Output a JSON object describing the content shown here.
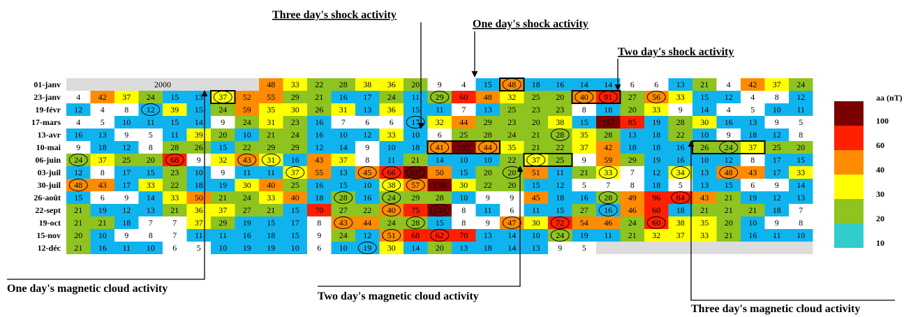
{
  "table": {
    "year": "2000",
    "rows": [
      {
        "date": "01-janv",
        "values": [
          48,
          33,
          22,
          28,
          38,
          36,
          20,
          9,
          4,
          15,
          48,
          18,
          16,
          14,
          14,
          6,
          6,
          13,
          21,
          4,
          42,
          37,
          24
        ]
      },
      {
        "date": "23-janv",
        "values": [
          4,
          42,
          37,
          24,
          15,
          13,
          37,
          52,
          55,
          29,
          21,
          16,
          17,
          24,
          11,
          29,
          60,
          48,
          32,
          25,
          20,
          40,
          91,
          27,
          56,
          33,
          15,
          12,
          4,
          8,
          12
        ]
      },
      {
        "date": "19-févr",
        "values": [
          12,
          4,
          8,
          12,
          39,
          15,
          24,
          59,
          35,
          30,
          26,
          31,
          13,
          36,
          15,
          11,
          7,
          13,
          25,
          23,
          23,
          8,
          18,
          20,
          33,
          9,
          14,
          4,
          5,
          10,
          11
        ]
      },
      {
        "date": "17-mars",
        "values": [
          4,
          5,
          10,
          11,
          15,
          14,
          9,
          24,
          31,
          23,
          16,
          7,
          6,
          6,
          17,
          32,
          44,
          29,
          23,
          20,
          38,
          15,
          117,
          85,
          19,
          28,
          30,
          16,
          13,
          9,
          5
        ]
      },
      {
        "date": "13-avr",
        "values": [
          16,
          13,
          9,
          5,
          11,
          39,
          20,
          10,
          21,
          24,
          16,
          10,
          12,
          33,
          10,
          6,
          25,
          28,
          24,
          21,
          28,
          35,
          28,
          13,
          18,
          22,
          10,
          9,
          18,
          12,
          8
        ]
      },
      {
        "date": "10-mai",
        "values": [
          9,
          18,
          12,
          8,
          28,
          26,
          15,
          22,
          29,
          29,
          12,
          14,
          9,
          10,
          18,
          41,
          103,
          44,
          35,
          21,
          22,
          37,
          42,
          18,
          18,
          16,
          26,
          24,
          37,
          25,
          20
        ]
      },
      {
        "date": "06-juin",
        "values": [
          24,
          37,
          25,
          20,
          68,
          9,
          32,
          43,
          31,
          16,
          43,
          37,
          8,
          11,
          21,
          14,
          10,
          10,
          22,
          37,
          25,
          9,
          59,
          29,
          19,
          16,
          10,
          12,
          8,
          17,
          15
        ]
      },
      {
        "date": "03-juil",
        "values": [
          12,
          8,
          17,
          15,
          23,
          10,
          9,
          11,
          11,
          37,
          55,
          13,
          45,
          66,
          207,
          50,
          15,
          20,
          20,
          51,
          11,
          21,
          33,
          7,
          12,
          34,
          13,
          48,
          43,
          17,
          33
        ]
      },
      {
        "date": "30-juil",
        "values": [
          48,
          43,
          17,
          33,
          22,
          18,
          19,
          30,
          40,
          25,
          16,
          15,
          10,
          38,
          57,
          138,
          30,
          22,
          20,
          15,
          12,
          5,
          7,
          8,
          18,
          5,
          13,
          15,
          6,
          9,
          14
        ]
      },
      {
        "date": "26-août",
        "values": [
          15,
          6,
          9,
          14,
          33,
          50,
          21,
          24,
          33,
          40,
          18,
          28,
          16,
          24,
          29,
          28,
          10,
          9,
          9,
          45,
          18,
          16,
          28,
          49,
          96,
          84,
          43,
          21,
          19,
          12,
          13
        ]
      },
      {
        "date": "22-sept",
        "values": [
          21,
          19,
          12,
          13,
          21,
          36,
          37,
          27,
          21,
          15,
          70,
          27,
          22,
          40,
          75,
          133,
          8,
          11,
          6,
          11,
          15,
          27,
          16,
          46,
          60,
          18,
          21,
          21,
          21,
          18,
          7
        ]
      },
      {
        "date": "19-oct",
        "values": [
          21,
          21,
          18,
          7,
          7,
          37,
          29,
          19,
          15,
          17,
          8,
          43,
          44,
          24,
          28,
          15,
          8,
          9,
          47,
          30,
          72,
          54,
          46,
          24,
          60,
          38,
          35,
          20,
          10,
          9,
          8
        ]
      },
      {
        "date": "15-nov",
        "values": [
          20,
          10,
          9,
          8,
          7,
          11,
          11,
          16,
          18,
          15,
          9,
          24,
          12,
          51,
          68,
          62,
          70,
          13,
          14,
          10,
          24,
          19,
          11,
          21,
          32,
          37,
          33,
          21,
          16,
          11,
          10
        ]
      },
      {
        "date": "12-déc",
        "values": [
          21,
          16,
          11,
          10,
          6,
          5,
          10,
          19,
          19,
          10,
          6,
          10,
          19,
          30,
          14,
          20,
          13,
          18,
          14,
          13,
          9,
          5
        ]
      }
    ]
  },
  "legend": {
    "title": "aa (nT)",
    "levels": [
      {
        "label": 100,
        "color": "#7b0000",
        "cell_color": "#7b0000"
      },
      {
        "label": 60,
        "color": "#ff2000",
        "cell_color": "#ff2000"
      },
      {
        "label": 40,
        "color": "#ff8c00",
        "cell_color": "#ff8c00"
      },
      {
        "label": 30,
        "color": "#ffff00",
        "cell_color": "#ffff00"
      },
      {
        "label": 20,
        "color": "#8fc31f",
        "cell_color": "#8fc31f"
      },
      {
        "label": 10,
        "color": "#33cccc",
        "cell_color": "#0fb4ef"
      }
    ]
  },
  "annotations": {
    "three_day_shock": "Three day's shock activity",
    "one_day_shock": "One day's shock activity",
    "two_day_shock": "Two day's shock activity",
    "one_day_cloud": "One day's magnetic cloud activity",
    "two_day_cloud": "Two day's magnetic cloud activity",
    "three_day_cloud": "Three day's magnetic cloud activity"
  }
}
